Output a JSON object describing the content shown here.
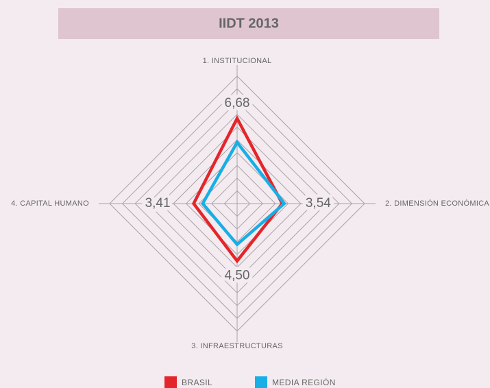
{
  "chart_data": {
    "type": "radar",
    "title": "IIDT 2013",
    "categories": [
      "1. INSTITUCIONAL",
      "2. DIMENSIÓN ECONÓMICA",
      "3. INFRAESTRUCTURAS",
      "4. CAPITAL HUMANO"
    ],
    "series": [
      {
        "name": "BRASIL",
        "color": "#e3262b",
        "values": [
          6.68,
          3.54,
          4.5,
          3.41
        ],
        "value_labels": [
          "6,68",
          "3,54",
          "4,50",
          "3,41"
        ]
      },
      {
        "name": "MEDIA REGIÓN",
        "color": "#18aee6",
        "values": [
          4.8,
          3.7,
          3.2,
          2.7
        ]
      }
    ],
    "rlim": [
      0,
      10
    ],
    "rticks": [
      1,
      2,
      3,
      4,
      5,
      6,
      7,
      8,
      9,
      10
    ],
    "grid": true
  }
}
